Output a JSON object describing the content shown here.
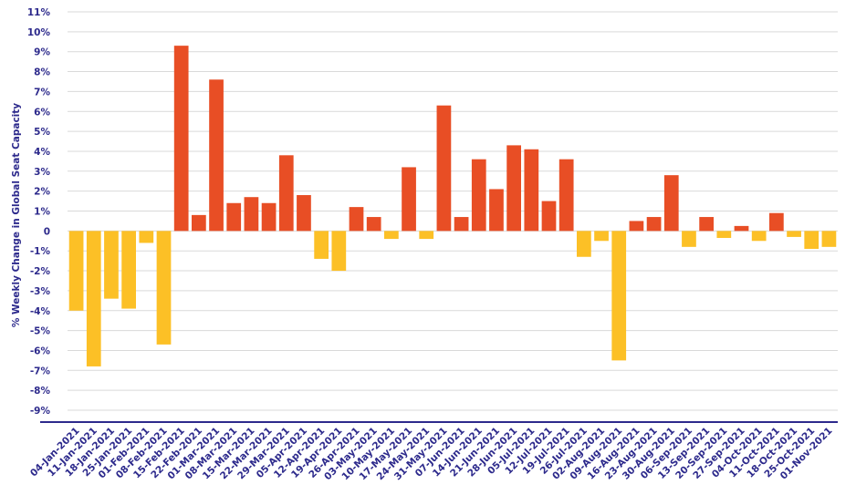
{
  "chart_data": {
    "type": "bar",
    "title": "",
    "xlabel": "",
    "ylabel": "% Weekly Change in Global Seat Capacity",
    "ylim": [
      -9.5,
      11.5
    ],
    "y_ticks": [
      "11%",
      "10%",
      "9%",
      "8%",
      "7%",
      "6%",
      "5%",
      "4%",
      "3%",
      "2%",
      "1%",
      "0",
      "-1%",
      "-2%",
      "-3%",
      "-4%",
      "-5%",
      "-6%",
      "-7%",
      "-8%",
      "-9%"
    ],
    "y_tick_values": [
      11,
      10,
      9,
      8,
      7,
      6,
      5,
      4,
      3,
      2,
      1,
      0,
      -1,
      -2,
      -3,
      -4,
      -5,
      -6,
      -7,
      -8,
      -9
    ],
    "grid": true,
    "colors": {
      "positive": "#e84e25",
      "negative": "#fcc026",
      "axis": "#2d2a8c",
      "grid": "#d9d9d9"
    },
    "categories": [
      "04-Jan-2021",
      "11-Jan-2021",
      "18-Jan-2021",
      "25-Jan-2021",
      "01-Feb-2021",
      "08-Feb-2021",
      "15-Feb-2021",
      "22-Feb-2021",
      "01-Mar-2021",
      "08-Mar-2021",
      "15-Mar-2021",
      "22-Mar-2021",
      "29-Mar-2021",
      "05-Apr-2021",
      "12-Apr-2021",
      "19-Apr-2021",
      "26-Apr-2021",
      "03-May-2021",
      "10-May-2021",
      "17-May-2021",
      "24-May-2021",
      "31-May-2021",
      "07-Jun-2021",
      "14-Jun-2021",
      "21-Jun-2021",
      "28-Jun-2021",
      "05-Jul-2021",
      "12-Jul-2021",
      "19-Jul-2021",
      "26-Jul-2021",
      "02-Aug-2021",
      "09-Aug-2021",
      "16-Aug-2021",
      "23-Aug-2021",
      "30-Aug-2021",
      "06-Sep-2021",
      "13-Sep-2021",
      "20-Sep-2021",
      "27-Sep-2021",
      "04-Oct-2021",
      "11-Oct-2021",
      "18-Oct-2021",
      "25-Oct-2021",
      "01-Nov-2021"
    ],
    "x_tick_labels": [
      "04-Jan-2021",
      "11-Jan-2021",
      "18-Jan-2021",
      "25-Jan-2021",
      "01-Feb-2021",
      "08-Feb-2021",
      "15-Feb-2021",
      "22-Feb-2021",
      "01-Mar-2021",
      "08-Mar-2021",
      "15-Mar-2021",
      "22-Mar-2021",
      "29-Mar-2021",
      "05-Apr-2021",
      "12-Apr-2021",
      "19-Apr-2021",
      "26-Apr-2021",
      "03-May-2021",
      "10-May-2021",
      "17-May-2021",
      "24-May-2021",
      "31-May-2021",
      "07-Jun-2021",
      "14-Jun-2021",
      "21-Jun-2021",
      "28-Jun-2021",
      "05-Jul-2021",
      "12-Jul-2021",
      "19-Jul-2021",
      "26-Jul-2021",
      "02-Aug-2021",
      "09-Aug-2021",
      "16-Aug-2021",
      "23-Aug-2021",
      "30-Aug-2021",
      "06-Sep-2021",
      "13-Sep-2021",
      "20-Sep-2021",
      "27-Sep-2021",
      "04-Oct-2021",
      "11-Oct-2021",
      "18-Oct-2021",
      "25-Oct-2021",
      "01-Nov-2021"
    ],
    "values": [
      -4.0,
      -6.8,
      -3.4,
      -3.9,
      -0.6,
      -5.7,
      9.3,
      0.8,
      7.6,
      1.4,
      1.7,
      1.4,
      3.8,
      1.8,
      -1.4,
      -2.0,
      1.2,
      0.7,
      -0.4,
      3.2,
      -0.4,
      6.3,
      0.7,
      3.6,
      2.1,
      4.3,
      4.1,
      1.5,
      3.6,
      -1.3,
      -0.5,
      -6.5,
      0.5,
      0.7,
      2.8,
      -0.8,
      0.7,
      -0.35,
      0.25,
      -0.5,
      0.9,
      -0.3,
      -0.9,
      -0.8
    ]
  }
}
